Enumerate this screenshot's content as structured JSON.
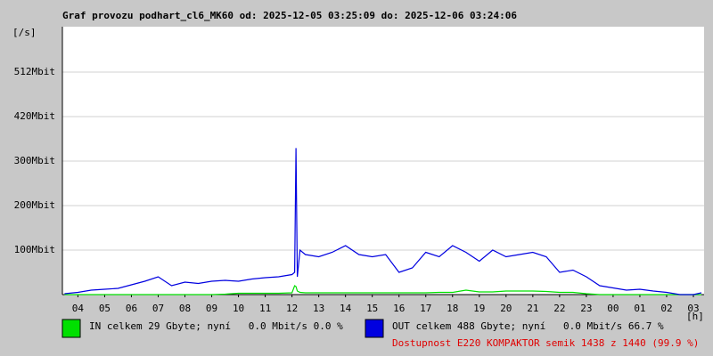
{
  "chart_data": {
    "type": "line",
    "title": "Graf provozu podhart_cl6_MK60 od: 2025-12-05 03:25:09 do: 2025-12-06 03:24:06",
    "y_unit": "[/s]",
    "x_unit": "[h]",
    "xlim": [
      3.42,
      27.4
    ],
    "xticks": [
      {
        "value": 4,
        "label": "04"
      },
      {
        "value": 5,
        "label": "05"
      },
      {
        "value": 6,
        "label": "06"
      },
      {
        "value": 7,
        "label": "07"
      },
      {
        "value": 8,
        "label": "08"
      },
      {
        "value": 9,
        "label": "09"
      },
      {
        "value": 10,
        "label": "10"
      },
      11,
      12,
      13,
      14,
      15,
      16,
      17,
      18,
      19,
      20,
      21,
      22,
      23,
      {
        "value": 24,
        "label": "00"
      },
      {
        "value": 25,
        "label": "01"
      },
      {
        "value": 26,
        "label": "02"
      },
      {
        "value": 27,
        "label": "03"
      }
    ],
    "ylim": [
      0,
      606
    ],
    "yticks": [
      {
        "value": 100,
        "label": "100Mbit"
      },
      {
        "value": 200,
        "label": "200Mbit"
      },
      {
        "value": 300,
        "label": "300Mbit"
      },
      {
        "value": 420,
        "label": "420Mbit"
      },
      {
        "value": 512,
        "label": "512Mbit"
      }
    ],
    "grid": true,
    "x": [
      3.5,
      4,
      4.5,
      5,
      5.5,
      6,
      6.5,
      7,
      7.5,
      8,
      8.5,
      9,
      9.5,
      10,
      10.5,
      11,
      11.5,
      12,
      12.1,
      12.15,
      12.2,
      12.3,
      12.5,
      13,
      13.5,
      14,
      14.5,
      15,
      15.5,
      16,
      16.5,
      17,
      17.5,
      18,
      18.5,
      19,
      19.5,
      20,
      20.5,
      21,
      21.5,
      22,
      22.5,
      23,
      23.5,
      24,
      24.5,
      25,
      25.5,
      26,
      26.5,
      27,
      27.3
    ],
    "series": [
      {
        "name": "IN celkem 29 Gbyte; nyní   0.0 Mbit/s 0.0 %",
        "color": "#00e000",
        "values": [
          0,
          0,
          0,
          0,
          0,
          0,
          0,
          0,
          0,
          0,
          0,
          0,
          1,
          3,
          3,
          3,
          3,
          4,
          20,
          18,
          8,
          5,
          4,
          4,
          4,
          4,
          4,
          4,
          4,
          4,
          4,
          4,
          5,
          5,
          10,
          6,
          6,
          8,
          8,
          8,
          7,
          5,
          5,
          2,
          0,
          0,
          0,
          0,
          0,
          0,
          0,
          0,
          0
        ]
      },
      {
        "name": "OUT celkem 488 Gbyte; nyní   0.0 Mbit/s 66.7 %",
        "color": "#0000e0",
        "values": [
          2,
          5,
          10,
          12,
          14,
          22,
          30,
          40,
          20,
          28,
          25,
          30,
          32,
          30,
          35,
          38,
          40,
          45,
          50,
          335,
          40,
          100,
          90,
          85,
          95,
          110,
          90,
          85,
          90,
          50,
          60,
          95,
          85,
          110,
          95,
          75,
          100,
          85,
          90,
          95,
          85,
          50,
          55,
          40,
          20,
          15,
          10,
          12,
          8,
          5,
          0,
          0,
          4
        ]
      }
    ],
    "availability": "Dostupnost E220 KOMPAKTOR semik 1438 z 1440 (99.9 %)"
  }
}
